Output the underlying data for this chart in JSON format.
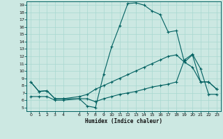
{
  "bg_color": "#cce8e2",
  "line_color": "#006060",
  "grid_color": "#a8d8d0",
  "xlabel": "Humidex (Indice chaleur)",
  "xlim": [
    -0.5,
    23.5
  ],
  "ylim": [
    4.5,
    19.5
  ],
  "xticks": [
    0,
    1,
    2,
    3,
    4,
    6,
    7,
    8,
    9,
    10,
    11,
    12,
    13,
    14,
    15,
    16,
    17,
    18,
    19,
    20,
    21,
    22,
    23
  ],
  "yticks": [
    5,
    6,
    7,
    8,
    9,
    10,
    11,
    12,
    13,
    14,
    15,
    16,
    17,
    18,
    19
  ],
  "line1_x": [
    0,
    1,
    2,
    3,
    4,
    6,
    7,
    8,
    9,
    10,
    11,
    12,
    13,
    14,
    15,
    16,
    17,
    18,
    19,
    20,
    21,
    22,
    23
  ],
  "line1_y": [
    8.5,
    7.2,
    7.3,
    6.2,
    6.2,
    6.2,
    5.2,
    5.0,
    9.5,
    13.3,
    16.2,
    19.2,
    19.3,
    19.0,
    18.2,
    17.7,
    15.3,
    15.5,
    11.2,
    12.2,
    8.5,
    8.5,
    7.5
  ],
  "line2_x": [
    0,
    1,
    2,
    3,
    4,
    6,
    7,
    8,
    9,
    10,
    11,
    12,
    13,
    14,
    15,
    16,
    17,
    18,
    19,
    20,
    21,
    22,
    23
  ],
  "line2_y": [
    8.5,
    7.2,
    7.3,
    6.2,
    6.2,
    6.5,
    6.8,
    7.5,
    8.0,
    8.5,
    9.0,
    9.5,
    10.0,
    10.5,
    11.0,
    11.5,
    12.0,
    12.2,
    11.2,
    10.5,
    8.5,
    8.5,
    7.5
  ],
  "line3_x": [
    0,
    1,
    2,
    3,
    4,
    6,
    7,
    8,
    9,
    10,
    11,
    12,
    13,
    14,
    15,
    16,
    17,
    18,
    19,
    20,
    21,
    22,
    23
  ],
  "line3_y": [
    6.5,
    6.5,
    6.5,
    6.0,
    6.0,
    6.2,
    6.2,
    5.8,
    6.2,
    6.5,
    6.8,
    7.0,
    7.2,
    7.5,
    7.8,
    8.0,
    8.2,
    8.5,
    11.5,
    12.3,
    10.3,
    6.8,
    6.8
  ]
}
